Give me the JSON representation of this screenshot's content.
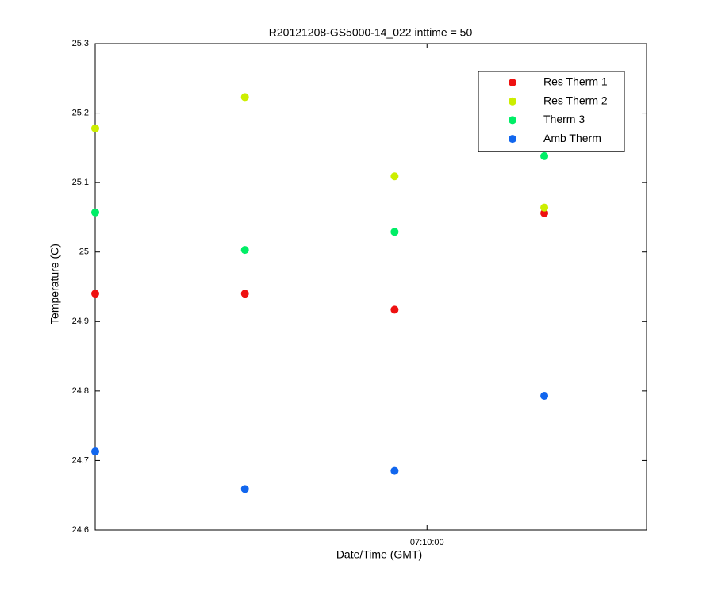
{
  "chart_data": {
    "type": "scatter",
    "title": "R20121208-GS5000-14_022 inttime = 50",
    "x_label": "Date/Time (GMT)",
    "y_label": "Temperature (C)",
    "x": [
      25667,
      25727,
      25787,
      25847
    ],
    "series": [
      {
        "name": "Res Therm 1",
        "color": "#ee1111",
        "values": [
          24.94,
          24.94,
          24.917,
          25.056
        ]
      },
      {
        "name": "Res Therm 2",
        "color": "#ccee00",
        "values": [
          25.178,
          25.223,
          25.109,
          25.064
        ]
      },
      {
        "name": "Therm 3",
        "color": "#00ee66",
        "values": [
          25.057,
          25.003,
          25.029,
          25.138
        ]
      },
      {
        "name": "Amb Therm",
        "color": "#1166ee",
        "values": [
          24.713,
          24.659,
          24.685,
          24.793
        ]
      }
    ],
    "xlim": [
      25667,
      25888
    ],
    "xticks": [
      {
        "value": 25800,
        "label": "07:10:00"
      }
    ],
    "ylim": [
      24.6,
      25.3
    ],
    "yticks": [
      24.6,
      24.7,
      24.8,
      24.9,
      25,
      25.1,
      25.2,
      25.3
    ],
    "legend": "upper right",
    "grid": false
  }
}
